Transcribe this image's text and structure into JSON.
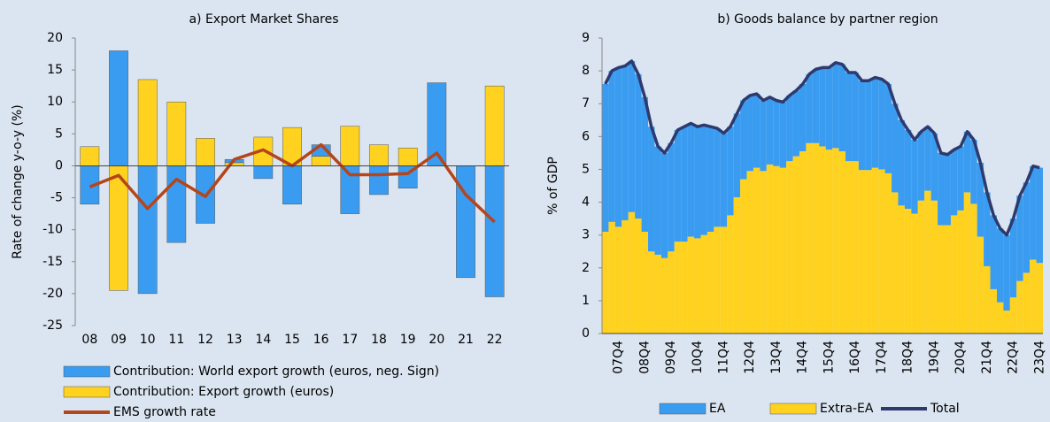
{
  "chart_data": [
    {
      "type": "bar",
      "title": "a) Export Market Shares",
      "y_label": "Rate of change y-o-y (%)",
      "categories": [
        "08",
        "09",
        "10",
        "11",
        "12",
        "13",
        "14",
        "15",
        "16",
        "17",
        "18",
        "19",
        "20",
        "21",
        "22"
      ],
      "series": [
        {
          "name": "Contribution: World export growth (euros, neg. Sign)",
          "color": "#3a9cf0",
          "values": [
            -6,
            18,
            -20,
            -12,
            -9,
            0.5,
            -2,
            -6,
            1.8,
            -7.5,
            -4.5,
            -3.5,
            13,
            -17.5,
            -20.5
          ]
        },
        {
          "name": "Contribution: Export growth (euros)",
          "color": "#ffd21f",
          "values": [
            3,
            -19.5,
            13.5,
            10,
            4.3,
            0.5,
            4.5,
            6,
            1.5,
            6.2,
            3.3,
            2.8,
            null,
            null,
            12.5
          ]
        },
        {
          "name": "EMS growth rate",
          "type": "line",
          "color": "#b5451b",
          "values": [
            -3.3,
            -1.5,
            -6.7,
            -2.1,
            -4.8,
            1,
            2.5,
            0,
            3.3,
            -1.4,
            -1.4,
            -1.2,
            2,
            -4.5,
            -8.8
          ]
        }
      ],
      "ylim": [
        -25,
        20
      ],
      "yticks": [
        -25,
        -20,
        -15,
        -10,
        -5,
        0,
        5,
        10,
        15,
        20
      ],
      "grid": false,
      "legend": "bottom"
    },
    {
      "type": "bar",
      "title": "b) Goods balance by partner region",
      "y_label": "% of GDP",
      "categories": [
        null,
        null,
        "07Q4",
        null,
        null,
        null,
        "08Q4",
        null,
        null,
        null,
        "09Q4",
        null,
        null,
        null,
        "10Q4",
        null,
        null,
        null,
        "11Q4",
        null,
        null,
        null,
        "12Q4",
        null,
        null,
        null,
        "13Q4",
        null,
        null,
        null,
        "14Q4",
        null,
        null,
        null,
        "15Q4",
        null,
        null,
        null,
        "16Q4",
        null,
        null,
        null,
        "17Q4",
        null,
        null,
        null,
        "18Q4",
        null,
        null,
        null,
        "19Q4",
        null,
        null,
        null,
        "20Q4",
        null,
        null,
        null,
        "21Q4",
        null,
        null,
        null,
        "22Q4",
        null,
        null,
        null,
        "23Q4"
      ],
      "series": [
        {
          "name": "EA",
          "color": "#3a9cf0",
          "values": [
            4.5,
            4.6,
            4.85,
            4.7,
            4.6,
            4.4,
            4.1,
            3.8,
            3.3,
            3.2,
            3.3,
            3.4,
            3.5,
            3.45,
            3.4,
            3.35,
            3.2,
            3.0,
            2.85,
            2.7,
            2.55,
            2.4,
            2.3,
            2.25,
            2.15,
            2.05,
            2.0,
            2.0,
            2.0,
            2.0,
            2.05,
            2.1,
            2.25,
            2.4,
            2.5,
            2.6,
            2.65,
            2.7,
            2.7,
            2.72,
            2.72,
            2.75,
            2.75,
            2.72,
            2.7,
            2.6,
            2.4,
            2.25,
            2.1,
            1.95,
            2.05,
            2.2,
            2.15,
            2.0,
            1.95,
            1.85,
            1.95,
            2.25,
            2.25,
            2.25,
            2.25,
            2.3,
            2.4,
            2.6,
            2.75,
            2.85,
            2.9
          ]
        },
        {
          "name": "Extra-EA",
          "color": "#ffd21f",
          "values": [
            3.1,
            3.4,
            3.25,
            3.45,
            3.7,
            3.5,
            3.1,
            2.5,
            2.4,
            2.3,
            2.5,
            2.8,
            2.8,
            2.95,
            2.9,
            3.0,
            3.1,
            3.25,
            3.25,
            3.6,
            4.15,
            4.7,
            4.95,
            5.05,
            4.95,
            5.15,
            5.1,
            5.05,
            5.25,
            5.4,
            5.55,
            5.8,
            5.8,
            5.7,
            5.6,
            5.65,
            5.55,
            5.25,
            5.25,
            4.98,
            4.98,
            5.05,
            5.0,
            4.88,
            4.3,
            3.9,
            3.8,
            3.65,
            4.05,
            4.35,
            4.05,
            3.3,
            3.3,
            3.6,
            3.75,
            4.3,
            3.95,
            2.95,
            2.05,
            1.35,
            0.95,
            0.7,
            1.1,
            1.6,
            1.85,
            2.25,
            2.15
          ]
        },
        {
          "name": "Total",
          "type": "line",
          "color": "#2e3a6e",
          "values": [
            7.6,
            8.0,
            8.1,
            8.15,
            8.3,
            7.9,
            7.2,
            6.3,
            5.7,
            5.5,
            5.8,
            6.2,
            6.3,
            6.4,
            6.3,
            6.35,
            6.3,
            6.25,
            6.1,
            6.3,
            6.7,
            7.1,
            7.25,
            7.3,
            7.1,
            7.2,
            7.1,
            7.05,
            7.25,
            7.4,
            7.6,
            7.9,
            8.05,
            8.1,
            8.1,
            8.25,
            8.2,
            7.95,
            7.95,
            7.7,
            7.7,
            7.8,
            7.75,
            7.6,
            7.0,
            6.5,
            6.2,
            5.9,
            6.15,
            6.3,
            6.1,
            5.5,
            5.45,
            5.6,
            5.7,
            6.15,
            5.9,
            5.2,
            4.3,
            3.6,
            3.2,
            3.0,
            3.5,
            4.2,
            4.6,
            5.1,
            5.05
          ]
        }
      ],
      "ylim": [
        0,
        9
      ],
      "yticks": [
        0,
        1,
        2,
        3,
        4,
        5,
        6,
        7,
        8,
        9
      ],
      "grid": false,
      "legend": "bottom"
    }
  ]
}
